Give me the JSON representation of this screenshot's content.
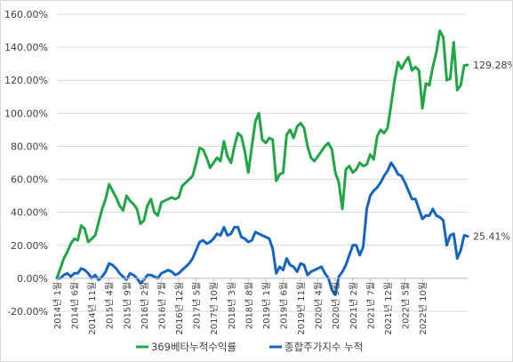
{
  "chart_data": {
    "type": "line",
    "ylim": [
      -20,
      160
    ],
    "yticks": [
      -20,
      0,
      20,
      40,
      60,
      80,
      100,
      120,
      140,
      160
    ],
    "ytick_labels": [
      "-20.00%",
      "0.00%",
      "20.00%",
      "40.00%",
      "60.00%",
      "80.00%",
      "100.00%",
      "120.00%",
      "140.00%",
      "160.00%"
    ],
    "x_tick_labels": [
      "2014년 1월",
      "2014년 6월",
      "2014년 11월",
      "2015년 4월",
      "2015년 9월",
      "2016년 2월",
      "2016년 7월",
      "2016년 12월",
      "2017년 5월",
      "2017년 10월",
      "2018년 3월",
      "2018년 8월",
      "2019년 1월",
      "2019년 6월",
      "2019년 11월",
      "2020년 4월",
      "2020년 9월",
      "2021년 2월",
      "2021년 7월",
      "2021년 12월",
      "2022년 5월",
      "2022년 10월"
    ],
    "grid": true,
    "legend_position": "bottom",
    "series": [
      {
        "name": "369베타누적수익률",
        "color": "#21a646",
        "end_label": "129.28%",
        "values": [
          0,
          6,
          12,
          16,
          21,
          24,
          23,
          32,
          30,
          22,
          24,
          26,
          34,
          42,
          48,
          57,
          53,
          49,
          44,
          41,
          50,
          47,
          45,
          42,
          33,
          35,
          44,
          48,
          40,
          38,
          46,
          47,
          48,
          49,
          48,
          49,
          56,
          58,
          60,
          62,
          70,
          79,
          78,
          73,
          67,
          70,
          73,
          71,
          83,
          74,
          70,
          80,
          88,
          86,
          77,
          64,
          80,
          95,
          100,
          84,
          82,
          85,
          84,
          59,
          63,
          64,
          87,
          90,
          85,
          92,
          94,
          91,
          80,
          73,
          71,
          74,
          77,
          80,
          82,
          78,
          64,
          58,
          42,
          66,
          68,
          64,
          66,
          70,
          68,
          69,
          75,
          72,
          86,
          90,
          88,
          91,
          105,
          120,
          131,
          127,
          131,
          134,
          126,
          128,
          126,
          103,
          118,
          117,
          128,
          137,
          150,
          146,
          120,
          121,
          143,
          114,
          117,
          129,
          129.28
        ]
      },
      {
        "name": "종합주가지수 누적",
        "color": "#1565c0",
        "end_label": "25.41%",
        "values": [
          0,
          0,
          2,
          3,
          1,
          3,
          3,
          6,
          5,
          3,
          0,
          2,
          -1,
          1,
          4,
          9,
          8,
          6,
          3,
          1,
          -1,
          3,
          2,
          0,
          -3,
          -1,
          2,
          2,
          1,
          0,
          3,
          4,
          5,
          4,
          2,
          3,
          5,
          7,
          9,
          12,
          17,
          22,
          23,
          21,
          22,
          24,
          27,
          26,
          31,
          26,
          27,
          31,
          31,
          25,
          24,
          22,
          23,
          28,
          27,
          26,
          25,
          24,
          18,
          3,
          7,
          5,
          12,
          8,
          7,
          4,
          9,
          8,
          2,
          4,
          5,
          6,
          7,
          3,
          0,
          -7,
          -10,
          1,
          4,
          8,
          14,
          20,
          20,
          14,
          19,
          42,
          50,
          53,
          55,
          58,
          62,
          65,
          70,
          67,
          63,
          62,
          58,
          53,
          48,
          48,
          42,
          36,
          38,
          38,
          42,
          38,
          37,
          35,
          20,
          26,
          27,
          12,
          17,
          26,
          25.41
        ]
      }
    ]
  }
}
